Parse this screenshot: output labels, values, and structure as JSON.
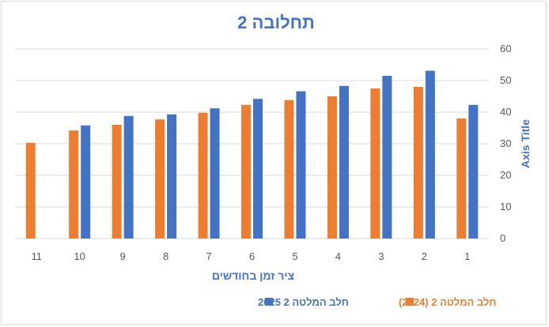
{
  "chart_data": {
    "type": "bar",
    "title": "תחלובה 2",
    "xlabel": "ציר זמן בחודשים",
    "ylabel": "Axis Title",
    "x_reversed": true,
    "y_axis_position": "right",
    "ylim": [
      0,
      60
    ],
    "yticks": [
      0,
      10,
      20,
      30,
      40,
      50,
      60
    ],
    "grid": true,
    "legend_position": "bottom",
    "categories": [
      "1",
      "2",
      "3",
      "4",
      "5",
      "6",
      "7",
      "8",
      "9",
      "10",
      "11"
    ],
    "series": [
      {
        "name": "חלב המלטה 2 (2024)",
        "color": "#ED7D31",
        "values": [
          38,
          48,
          47.5,
          45,
          43.8,
          42.3,
          39.8,
          37.7,
          36,
          34.2,
          30.3
        ]
      },
      {
        "name": "חלב המלטה 2 2025",
        "color": "#4472C4",
        "values": [
          42.3,
          53.1,
          51.5,
          48.3,
          46.6,
          44.2,
          41.2,
          39.3,
          38.8,
          35.8,
          null
        ]
      }
    ],
    "title_color": "#4472C4",
    "axis_title_color": "#4472C4",
    "grid_color": "#d9d9d9"
  }
}
